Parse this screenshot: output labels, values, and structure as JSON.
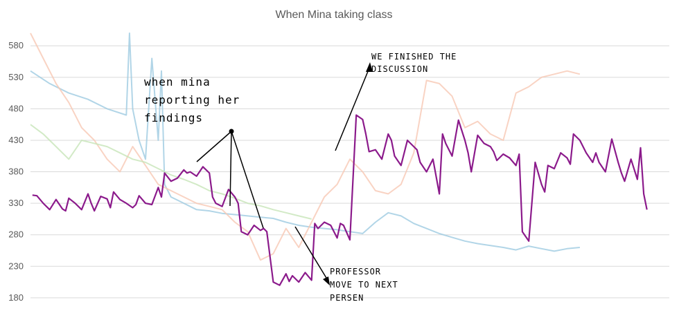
{
  "chart_data": {
    "type": "line",
    "title": "When Mina taking class",
    "xlabel": "",
    "ylabel": "",
    "ylim": [
      170,
      600
    ],
    "yticks": [
      180,
      230,
      280,
      330,
      380,
      430,
      480,
      530,
      580
    ],
    "grid": true,
    "x_range": [
      0,
      100
    ],
    "series": [
      {
        "color": "#8b1a8b",
        "emphasis": "primary",
        "x": [
          0.3,
          1,
          2,
          3,
          4,
          5,
          5.5,
          6,
          7,
          8,
          9,
          9.5,
          10,
          11,
          12,
          12.5,
          13,
          14,
          15,
          16,
          16.5,
          17,
          18,
          19,
          20,
          20.5,
          21,
          22,
          23,
          24,
          24.5,
          25,
          26,
          27,
          28,
          28.5,
          29,
          30,
          31,
          32,
          32.5,
          33,
          34,
          35,
          36,
          36.5,
          37,
          38,
          39,
          40,
          40.5,
          41,
          42,
          43,
          44,
          44.5,
          45,
          46,
          47,
          48,
          48.5,
          49,
          50,
          51,
          52,
          52.5,
          53,
          54,
          55,
          56,
          56.5,
          57,
          58,
          59,
          60,
          60.5,
          61,
          62,
          63,
          64,
          64.5,
          65,
          66,
          67,
          68,
          68.5,
          69,
          70,
          71,
          72,
          72.5,
          73,
          74,
          75,
          76,
          76.5,
          77,
          78,
          79,
          80,
          80.5,
          81,
          82,
          83,
          84,
          84.5,
          85,
          86,
          87,
          88,
          88.5,
          89,
          90,
          91,
          92,
          92.5,
          93,
          94,
          95,
          95.5,
          96,
          96.5
        ],
        "y": [
          343,
          342,
          330,
          320,
          336,
          321,
          318,
          338,
          330,
          320,
          345,
          330,
          318,
          341,
          337,
          323,
          348,
          336,
          330,
          323,
          328,
          342,
          330,
          328,
          355,
          340,
          378,
          365,
          370,
          383,
          378,
          380,
          373,
          388,
          378,
          340,
          330,
          325,
          352,
          340,
          330,
          285,
          280,
          295,
          287,
          290,
          285,
          205,
          200,
          218,
          206,
          215,
          205,
          220,
          208,
          298,
          290,
          300,
          295,
          275,
          298,
          295,
          272,
          470,
          463,
          440,
          412,
          415,
          400,
          440,
          430,
          405,
          390,
          430,
          420,
          415,
          395,
          380,
          400,
          345,
          440,
          425,
          405,
          462,
          430,
          410,
          380,
          438,
          425,
          420,
          412,
          398,
          408,
          402,
          390,
          408,
          285,
          270,
          395,
          360,
          348,
          390,
          385,
          410,
          402,
          392,
          440,
          430,
          410,
          395,
          410,
          395,
          380,
          432,
          395,
          378,
          365,
          400,
          368,
          418,
          345,
          320
        ]
      },
      {
        "color": "#9ecae1",
        "emphasis": "faded",
        "x": [
          0,
          3,
          6,
          9,
          12,
          15,
          15.5,
          16,
          17,
          18,
          19,
          20,
          20.5,
          21,
          22,
          24,
          26,
          28,
          30,
          32,
          34,
          36,
          38,
          40,
          42,
          44,
          46,
          48,
          50,
          52,
          54,
          56,
          58,
          60,
          62,
          64,
          66,
          68,
          70,
          72,
          74,
          76,
          78,
          80,
          82,
          84,
          86
        ],
        "y": [
          540,
          520,
          505,
          495,
          480,
          470,
          600,
          480,
          430,
          400,
          560,
          430,
          540,
          360,
          340,
          330,
          320,
          318,
          314,
          312,
          310,
          308,
          306,
          300,
          295,
          292,
          290,
          288,
          285,
          282,
          300,
          315,
          310,
          298,
          290,
          282,
          276,
          270,
          266,
          263,
          260,
          256,
          262,
          258,
          254,
          258,
          260
        ]
      },
      {
        "color": "#f8c8b4",
        "emphasis": "faded",
        "x": [
          0,
          2,
          4,
          6,
          8,
          10,
          12,
          14,
          16,
          18,
          20,
          22,
          24,
          26,
          28,
          30,
          32,
          34,
          36,
          38,
          40,
          42,
          44,
          46,
          48,
          50,
          52,
          54,
          56,
          58,
          60,
          62,
          64,
          66,
          68,
          70,
          72,
          74,
          76,
          78,
          80,
          82,
          84,
          86
        ],
        "y": [
          600,
          560,
          520,
          490,
          450,
          430,
          400,
          380,
          420,
          390,
          360,
          350,
          340,
          330,
          325,
          320,
          300,
          285,
          240,
          250,
          290,
          260,
          300,
          340,
          360,
          400,
          380,
          350,
          345,
          360,
          410,
          525,
          520,
          500,
          450,
          460,
          440,
          430,
          505,
          515,
          530,
          535,
          540,
          535
        ]
      },
      {
        "color": "#c7e5b8",
        "emphasis": "faded",
        "x": [
          0,
          2,
          4,
          6,
          8,
          10,
          12,
          14,
          16,
          18,
          20,
          22,
          24,
          26,
          28,
          30,
          32,
          34,
          36,
          38,
          40,
          42,
          44
        ],
        "y": [
          455,
          440,
          420,
          400,
          430,
          425,
          420,
          410,
          400,
          395,
          385,
          375,
          368,
          360,
          350,
          345,
          338,
          330,
          326,
          320,
          315,
          310,
          305
        ]
      }
    ],
    "annotations": [
      {
        "lines": [
          "when mina",
          "reporting her",
          "findings"
        ]
      },
      {
        "lines": [
          "WE FINISHED THE",
          "DISCUSSION"
        ]
      },
      {
        "lines": [
          "PROFESSOR",
          "MOVE TO NEXT",
          "PERSEN"
        ]
      }
    ]
  }
}
